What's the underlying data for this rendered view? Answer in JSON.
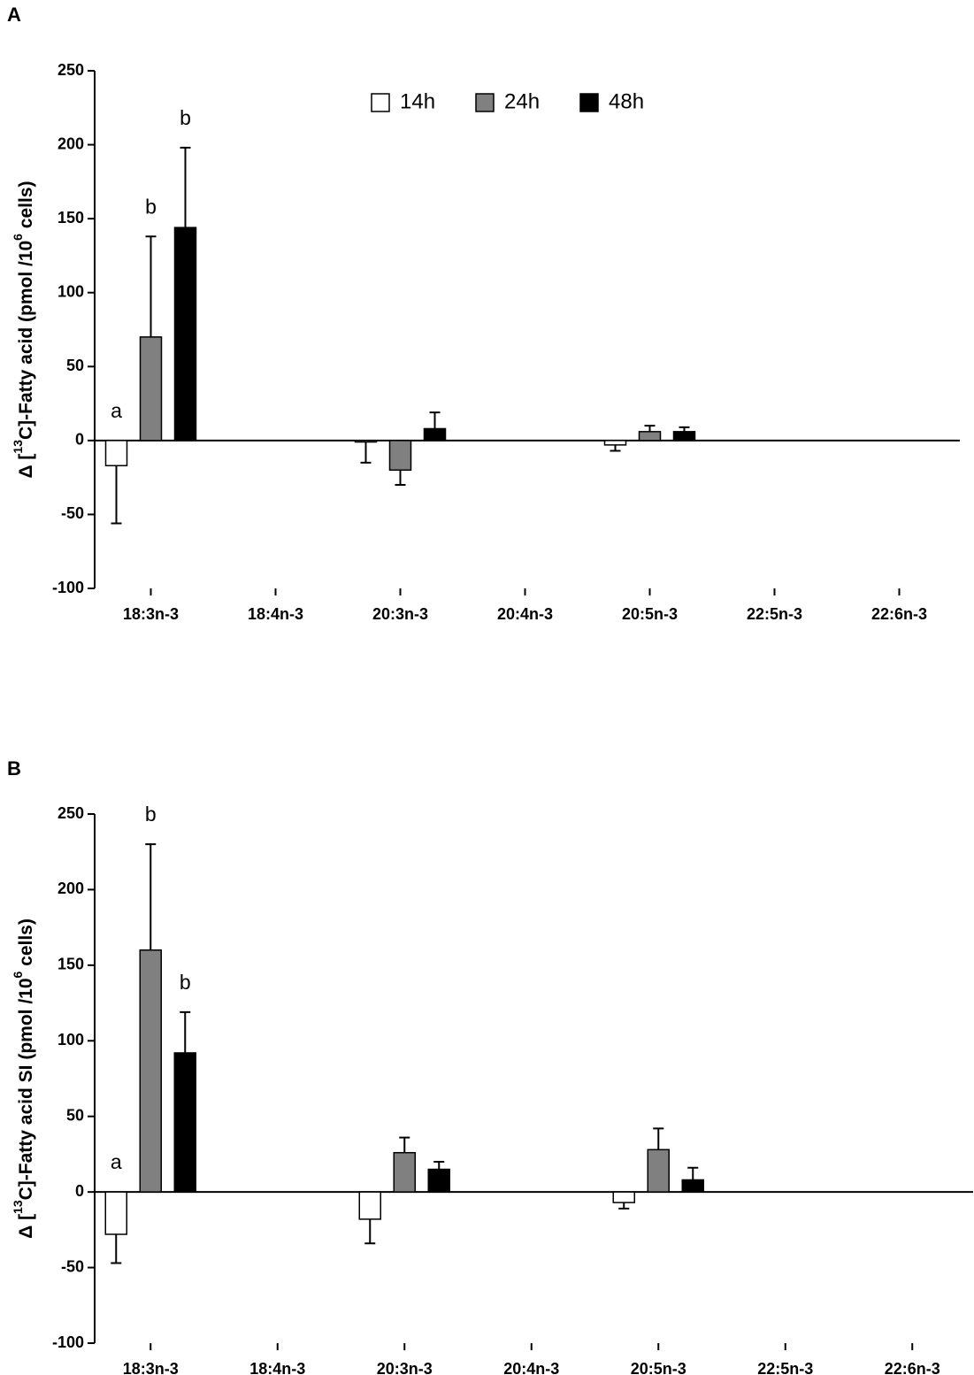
{
  "chart_data": [
    {
      "type": "bar",
      "panel_label": "A",
      "y_label": [
        "Δ [",
        "13",
        "C]-Fatty acid (pmol /10",
        "6",
        " cells)"
      ],
      "categories": [
        "18:3n-3",
        "18:4n-3",
        "20:3n-3",
        "20:4n-3",
        "20:5n-3",
        "22:5n-3",
        "22:6n-3"
      ],
      "series": [
        {
          "name": "14h",
          "color": "#ffffff",
          "values": [
            -17,
            null,
            -1,
            null,
            -3,
            null,
            null
          ],
          "errors": [
            39,
            null,
            14,
            null,
            4,
            null,
            null
          ],
          "labels": [
            "a",
            null,
            null,
            null,
            null,
            null,
            null
          ]
        },
        {
          "name": "24h",
          "color": "#808080",
          "values": [
            70,
            null,
            -20,
            null,
            6,
            null,
            null
          ],
          "errors": [
            68,
            null,
            10,
            null,
            4,
            null,
            null
          ],
          "labels": [
            "b",
            null,
            null,
            null,
            null,
            null,
            null
          ]
        },
        {
          "name": "48h",
          "color": "#000000",
          "values": [
            144,
            null,
            8,
            null,
            6,
            null,
            null
          ],
          "errors": [
            54,
            null,
            11,
            null,
            3,
            null,
            null
          ],
          "labels": [
            "b",
            null,
            null,
            null,
            null,
            null,
            null
          ]
        }
      ],
      "ylim": [
        -100,
        250
      ],
      "yticks": [
        -100,
        -50,
        0,
        50,
        100,
        150,
        200,
        250
      ],
      "legend": "top"
    },
    {
      "type": "bar",
      "panel_label": "B",
      "y_label": [
        "Δ [",
        "13",
        "C]-Fatty acid SI (pmol /10",
        "6",
        " cells)"
      ],
      "categories": [
        "18:3n-3",
        "18:4n-3",
        "20:3n-3",
        "20:4n-3",
        "20:5n-3",
        "22:5n-3",
        "22:6n-3"
      ],
      "series": [
        {
          "name": "14h",
          "color": "#ffffff",
          "values": [
            -28,
            null,
            -18,
            null,
            -7,
            null,
            null
          ],
          "errors": [
            19,
            null,
            16,
            null,
            4,
            null,
            null
          ],
          "labels": [
            "a",
            null,
            null,
            null,
            null,
            null,
            null
          ]
        },
        {
          "name": "24h",
          "color": "#808080",
          "values": [
            160,
            null,
            26,
            null,
            28,
            null,
            null
          ],
          "errors": [
            70,
            null,
            10,
            null,
            14,
            null,
            null
          ],
          "labels": [
            "b",
            null,
            null,
            null,
            null,
            null,
            null
          ]
        },
        {
          "name": "48h",
          "color": "#000000",
          "values": [
            92,
            null,
            15,
            null,
            8,
            null,
            null
          ],
          "errors": [
            27,
            null,
            5,
            null,
            8,
            null,
            null
          ],
          "labels": [
            "b",
            null,
            null,
            null,
            null,
            null,
            null
          ]
        }
      ],
      "ylim": [
        -100,
        250
      ],
      "yticks": [
        -100,
        -50,
        0,
        50,
        100,
        150,
        200,
        250
      ]
    }
  ]
}
